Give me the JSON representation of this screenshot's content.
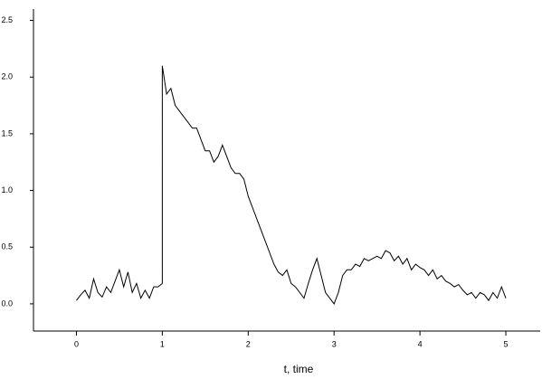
{
  "chart_data": {
    "type": "line",
    "x_label": "t, time",
    "x": [
      0,
      0.05,
      0.1,
      0.15,
      0.2,
      0.25,
      0.3,
      0.35,
      0.4,
      0.45,
      0.5,
      0.55,
      0.6,
      0.65,
      0.7,
      0.75,
      0.8,
      0.85,
      0.9,
      0.95,
      1.0,
      1.0,
      1.05,
      1.1,
      1.15,
      1.2,
      1.25,
      1.3,
      1.35,
      1.4,
      1.45,
      1.5,
      1.55,
      1.6,
      1.65,
      1.7,
      1.75,
      1.8,
      1.85,
      1.9,
      1.95,
      2.0,
      2.05,
      2.1,
      2.15,
      2.2,
      2.25,
      2.3,
      2.35,
      2.4,
      2.45,
      2.5,
      2.55,
      2.6,
      2.65,
      2.7,
      2.75,
      2.8,
      2.85,
      2.9,
      2.95,
      3.0,
      3.05,
      3.1,
      3.15,
      3.2,
      3.25,
      3.3,
      3.35,
      3.4,
      3.45,
      3.5,
      3.55,
      3.6,
      3.65,
      3.7,
      3.75,
      3.8,
      3.85,
      3.9,
      3.95,
      4.0,
      4.05,
      4.1,
      4.15,
      4.2,
      4.25,
      4.3,
      4.35,
      4.4,
      4.45,
      4.5,
      4.55,
      4.6,
      4.65,
      4.7,
      4.75,
      4.8,
      4.85,
      4.9,
      4.95,
      5.0
    ],
    "series": [
      {
        "color": "#000000",
        "values": [
          0.03,
          0.08,
          0.12,
          0.05,
          0.22,
          0.1,
          0.06,
          0.15,
          0.1,
          0.2,
          0.3,
          0.15,
          0.28,
          0.1,
          0.18,
          0.05,
          0.12,
          0.05,
          0.15,
          0.15,
          0.18,
          2.1,
          1.85,
          1.9,
          1.75,
          1.7,
          1.65,
          1.6,
          1.55,
          1.55,
          1.45,
          1.35,
          1.35,
          1.25,
          1.3,
          1.4,
          1.3,
          1.2,
          1.15,
          1.15,
          1.1,
          0.95,
          0.85,
          0.75,
          0.65,
          0.55,
          0.45,
          0.35,
          0.28,
          0.25,
          0.3,
          0.18,
          0.15,
          0.1,
          0.05,
          0.18,
          0.3,
          0.4,
          0.25,
          0.1,
          0.05,
          0.0,
          0.1,
          0.25,
          0.3,
          0.3,
          0.35,
          0.33,
          0.4,
          0.38,
          0.4,
          0.42,
          0.4,
          0.47,
          0.45,
          0.38,
          0.42,
          0.35,
          0.4,
          0.3,
          0.35,
          0.32,
          0.3,
          0.25,
          0.3,
          0.22,
          0.25,
          0.2,
          0.18,
          0.15,
          0.17,
          0.12,
          0.08,
          0.1,
          0.05,
          0.1,
          0.08,
          0.03,
          0.1,
          0.05,
          0.15,
          0.05
        ]
      }
    ],
    "xlim": [
      -0.5,
      5.4
    ],
    "xticks": [
      0,
      1,
      2,
      3,
      4,
      5
    ],
    "ylim": [
      -0.24,
      2.6
    ],
    "yticks": [
      {
        "value": 0,
        "label": "0.0"
      },
      {
        "value": 0.5,
        "label": "0.5"
      },
      {
        "value": 1,
        "label": "1.0"
      },
      {
        "value": 1.5,
        "label": "1.5"
      },
      {
        "value": 2,
        "label": "2.0"
      },
      {
        "value": 2.5,
        "label": "2.5"
      }
    ],
    "grid": false
  }
}
